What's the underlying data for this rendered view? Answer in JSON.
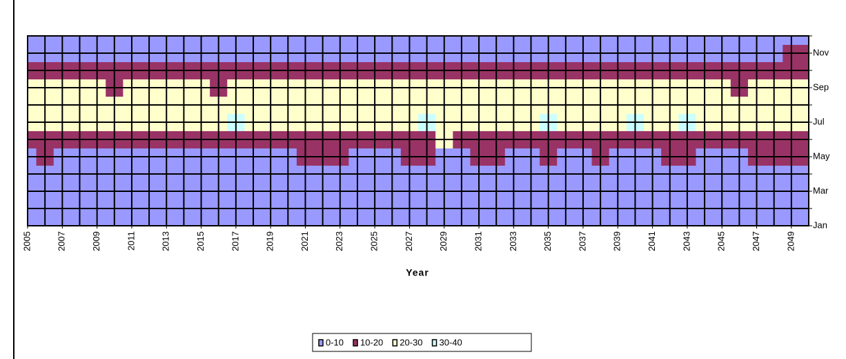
{
  "chart_data": {
    "type": "surface",
    "x_label": "Year",
    "x": [
      2005,
      2006,
      2007,
      2008,
      2009,
      2010,
      2011,
      2012,
      2013,
      2014,
      2015,
      2016,
      2017,
      2018,
      2019,
      2020,
      2021,
      2022,
      2023,
      2024,
      2025,
      2026,
      2027,
      2028,
      2029,
      2030,
      2031,
      2032,
      2033,
      2034,
      2035,
      2036,
      2037,
      2038,
      2039,
      2040,
      2041,
      2042,
      2043,
      2044,
      2045,
      2046,
      2047,
      2048,
      2049,
      2050
    ],
    "xlim": [
      2005,
      2050
    ],
    "xticks": [
      2005,
      2007,
      2009,
      2011,
      2013,
      2015,
      2017,
      2019,
      2021,
      2023,
      2025,
      2027,
      2029,
      2031,
      2033,
      2035,
      2037,
      2039,
      2041,
      2043,
      2045,
      2047,
      2049
    ],
    "y_categories": [
      "Jan",
      null,
      "Mar",
      null,
      "May",
      null,
      "Jul",
      null,
      "Sep",
      null,
      "Nov",
      null
    ],
    "bands": [
      {
        "name": "0-10",
        "color": "#9999ff",
        "range": [
          0,
          10
        ]
      },
      {
        "name": "10-20",
        "color": "#993366",
        "range": [
          10,
          20
        ]
      },
      {
        "name": "20-30",
        "color": "#ffffcc",
        "range": [
          20,
          30
        ]
      },
      {
        "name": "30-40",
        "color": "#ccffff",
        "range": [
          30,
          40
        ]
      }
    ],
    "z": [
      [
        2,
        2,
        3,
        2,
        2,
        3,
        2,
        2,
        3,
        2,
        2,
        2,
        3,
        2,
        2,
        3,
        2,
        2,
        3,
        2,
        2,
        2,
        3,
        2,
        2,
        3,
        2,
        2,
        3,
        2,
        2,
        2,
        3,
        2,
        2,
        3,
        2,
        2,
        3,
        2,
        2,
        3,
        2,
        2,
        3,
        2
      ],
      [
        3,
        3,
        4,
        3,
        3,
        4,
        3,
        3,
        4,
        3,
        3,
        3,
        4,
        3,
        3,
        4,
        3,
        3,
        4,
        3,
        3,
        3,
        4,
        3,
        3,
        4,
        3,
        3,
        4,
        3,
        3,
        3,
        4,
        3,
        3,
        4,
        3,
        3,
        4,
        3,
        3,
        4,
        3,
        3,
        4,
        3
      ],
      [
        5,
        4,
        5,
        5,
        4,
        5,
        5,
        4,
        5,
        5,
        4,
        5,
        5,
        4,
        5,
        5,
        4,
        5,
        5,
        4,
        5,
        5,
        4,
        5,
        5,
        4,
        5,
        5,
        4,
        5,
        5,
        4,
        5,
        5,
        4,
        5,
        5,
        4,
        5,
        5,
        4,
        5,
        5,
        4,
        5,
        5
      ],
      [
        7,
        7,
        6,
        7,
        7,
        6,
        7,
        7,
        6,
        7,
        7,
        6,
        7,
        7,
        6,
        7,
        7,
        6,
        7,
        7,
        6,
        7,
        7,
        6,
        7,
        7,
        6,
        7,
        7,
        6,
        7,
        7,
        6,
        7,
        7,
        6,
        7,
        7,
        6,
        7,
        7,
        6,
        7,
        7,
        6,
        7
      ],
      [
        9,
        11,
        9,
        8,
        9,
        9,
        8,
        9,
        9,
        8,
        9,
        9,
        8,
        9,
        9,
        9,
        11,
        12,
        12,
        9,
        9,
        9,
        12,
        11,
        9,
        9,
        12,
        13,
        9,
        9,
        12,
        9,
        9,
        11,
        9,
        9,
        9,
        11,
        12,
        9,
        9,
        9,
        11,
        11,
        11,
        11
      ],
      [
        14,
        17,
        16,
        15,
        15,
        15,
        15,
        15,
        14,
        15,
        15,
        15,
        17,
        17,
        16,
        15,
        17,
        18,
        18,
        16,
        17,
        17,
        18,
        16,
        22,
        18,
        18,
        19,
        17,
        17,
        18,
        17,
        18,
        18,
        17,
        17,
        17,
        18,
        17,
        16,
        16,
        17,
        18,
        17,
        18,
        18
      ],
      [
        24,
        25,
        24,
        24,
        25,
        25,
        26,
        25,
        24,
        25,
        25,
        24,
        31,
        27,
        26,
        25,
        26,
        25,
        24,
        25,
        25,
        26,
        26,
        31,
        27,
        25,
        26,
        25,
        25,
        26,
        31,
        27,
        25,
        26,
        26,
        31,
        26,
        25,
        31,
        26,
        26,
        25,
        26,
        26,
        25,
        26
      ],
      [
        25,
        26,
        26,
        26,
        26,
        27,
        28,
        27,
        26,
        26,
        26,
        22,
        26,
        27,
        27,
        27,
        26,
        27,
        26,
        26,
        27,
        27,
        26,
        27,
        28,
        27,
        26,
        26,
        26,
        27,
        27,
        27,
        26,
        26,
        27,
        26,
        27,
        27,
        26,
        26,
        27,
        27,
        26,
        27,
        28,
        28
      ],
      [
        22,
        21,
        21,
        22,
        21,
        18,
        21,
        22,
        21,
        21,
        21,
        18,
        22,
        23,
        23,
        22,
        21,
        22,
        22,
        21,
        23,
        22,
        21,
        23,
        22,
        21,
        21,
        22,
        22,
        22,
        22,
        21,
        22,
        21,
        21,
        22,
        22,
        23,
        22,
        21,
        22,
        18,
        21,
        23,
        24,
        25
      ],
      [
        13,
        14,
        14,
        13,
        14,
        15,
        15,
        13,
        13,
        13,
        13,
        13,
        14,
        15,
        15,
        14,
        14,
        14,
        15,
        15,
        15,
        14,
        14,
        15,
        15,
        14,
        14,
        13,
        14,
        14,
        14,
        14,
        14,
        13,
        14,
        15,
        15,
        14,
        14,
        14,
        14,
        15,
        16,
        17,
        18,
        18
      ],
      [
        8,
        8,
        8,
        8,
        9,
        9,
        9,
        8,
        8,
        8,
        8,
        8,
        8,
        9,
        9,
        9,
        8,
        9,
        8,
        9,
        9,
        9,
        8,
        9,
        9,
        9,
        8,
        8,
        8,
        8,
        8,
        8,
        8,
        8,
        8,
        9,
        9,
        8,
        8,
        9,
        9,
        8,
        9,
        9,
        10,
        12
      ],
      [
        3,
        3,
        3,
        3,
        4,
        3,
        3,
        3,
        3,
        3,
        3,
        3,
        3,
        3,
        4,
        3,
        3,
        3,
        3,
        3,
        3,
        3,
        3,
        3,
        4,
        3,
        3,
        3,
        3,
        3,
        3,
        3,
        3,
        3,
        4,
        3,
        3,
        3,
        3,
        3,
        3,
        3,
        3,
        3,
        5,
        5
      ]
    ]
  }
}
